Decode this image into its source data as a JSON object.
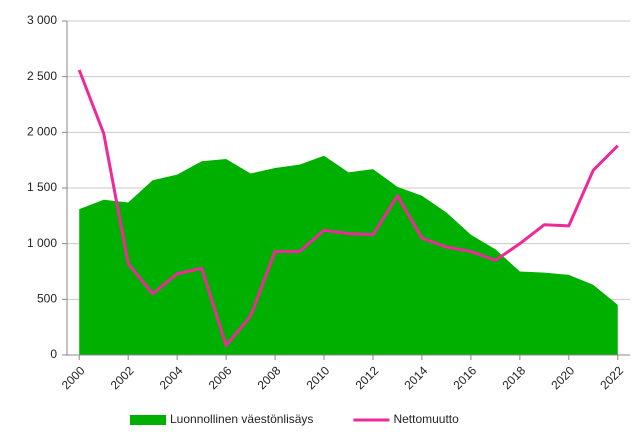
{
  "chart_data": {
    "type": "area-line",
    "x": [
      2000,
      2001,
      2002,
      2003,
      2004,
      2005,
      2006,
      2007,
      2008,
      2009,
      2010,
      2011,
      2012,
      2013,
      2014,
      2015,
      2016,
      2017,
      2018,
      2019,
      2020,
      2021,
      2022
    ],
    "series": [
      {
        "name": "Luonnollinen väestönlisäys",
        "color": "#00b000",
        "kind": "area",
        "values": [
          1310,
          1395,
          1370,
          1570,
          1620,
          1740,
          1760,
          1630,
          1680,
          1710,
          1790,
          1640,
          1670,
          1510,
          1430,
          1280,
          1080,
          950,
          750,
          740,
          720,
          630,
          450
        ]
      },
      {
        "name": "Nettomuutto",
        "color": "#ee2a9a",
        "kind": "line",
        "values": [
          2560,
          1990,
          820,
          550,
          730,
          780,
          85,
          350,
          930,
          930,
          1120,
          1090,
          1080,
          1430,
          1050,
          970,
          930,
          850,
          1000,
          1170,
          1160,
          1660,
          1880
        ]
      }
    ],
    "xlim": [
      1999.5,
      2022.5
    ],
    "xticks": [
      2000,
      2002,
      2004,
      2006,
      2008,
      2010,
      2012,
      2014,
      2016,
      2018,
      2020,
      2022
    ],
    "ylim": [
      0,
      3000
    ],
    "yticks": [
      0,
      500,
      {
        "value": 1000,
        "label": "1 000"
      },
      {
        "value": 1500,
        "label": "1 500"
      },
      {
        "value": 2000,
        "label": "2 000"
      },
      {
        "value": 2500,
        "label": "2 500"
      },
      {
        "value": 3000,
        "label": "3 000"
      }
    ],
    "grid": true,
    "legend": "bottom"
  }
}
